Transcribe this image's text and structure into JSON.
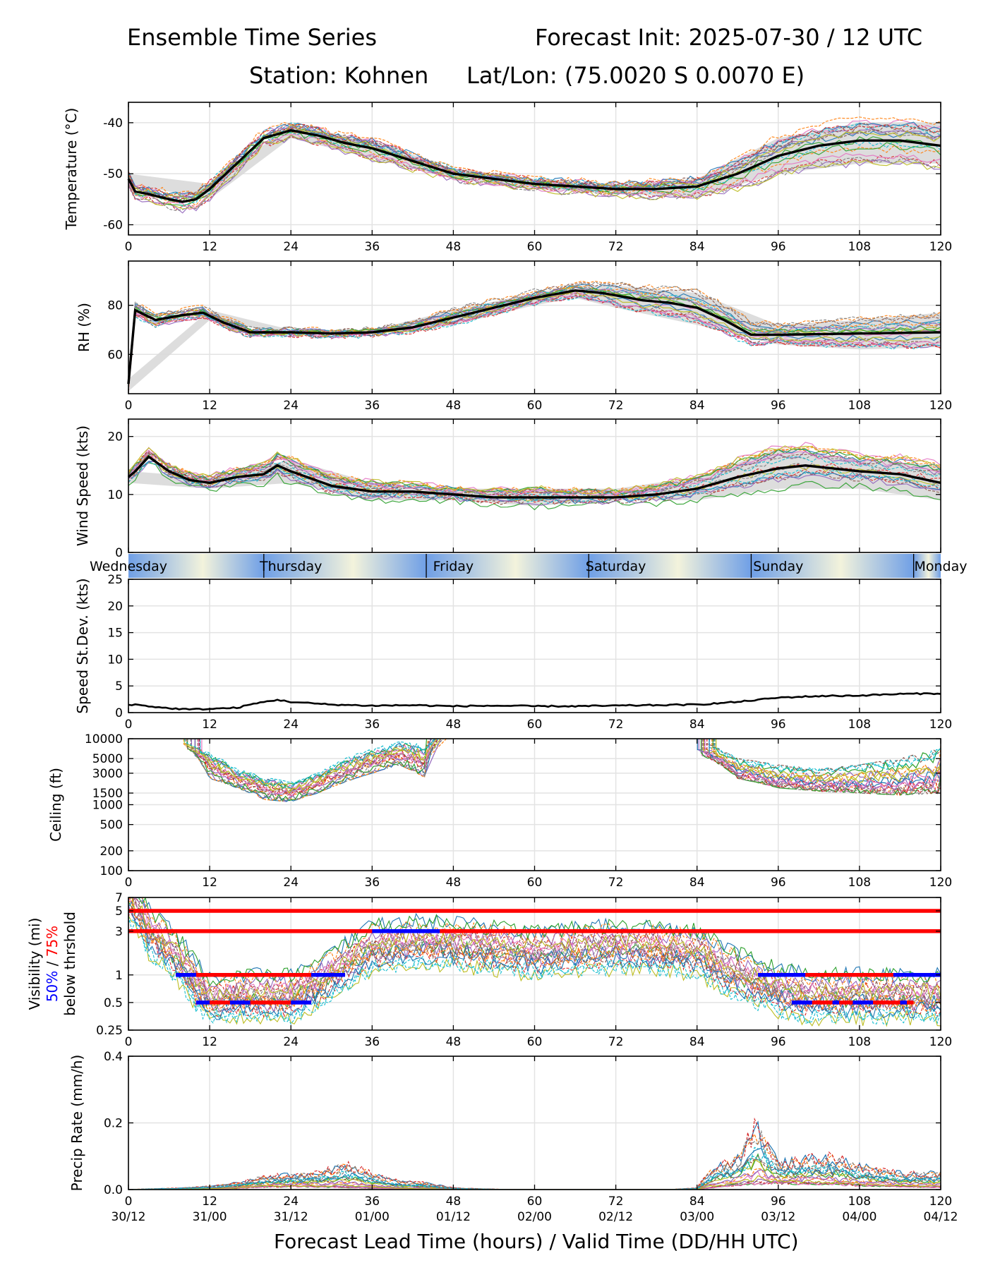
{
  "header": {
    "title_left": "Ensemble Time Series",
    "title_right": "Forecast Init: 2025-07-30 / 12 UTC",
    "station": "Station: Kohnen",
    "latlon": "Lat/Lon: (75.0020 S 0.0070 E)"
  },
  "footer": {
    "xlabel": "Forecast Lead Time (hours) / Valid Time (DD/HH UTC)"
  },
  "colors": {
    "mean": "#000000",
    "spread": "#d9d9d9",
    "threshold_75": "#ff0000",
    "threshold_50": "#0000ff",
    "day_band_light": "#f3f3dc",
    "day_band_dark": "#6f9fe6"
  },
  "lead_hours": [
    "0",
    "12",
    "24",
    "36",
    "48",
    "60",
    "72",
    "84",
    "96",
    "108",
    "120"
  ],
  "valid_times": [
    "30/12",
    "31/00",
    "31/12",
    "01/00",
    "01/12",
    "02/00",
    "02/12",
    "03/00",
    "03/12",
    "04/00",
    "04/12"
  ],
  "days": [
    "Wednesday",
    "Thursday",
    "Friday",
    "Saturday",
    "Sunday",
    "Monday"
  ],
  "visibility_legend": {
    "line1": "Visibility (mi)",
    "p50": "50%",
    "slash": " / ",
    "p75": "75%",
    "line3": "below thrshold"
  },
  "chart_data": [
    {
      "type": "line",
      "panel": "temperature",
      "ylabel": "Temperature (°C)",
      "ylim": [
        -62,
        -36
      ],
      "yticks": [
        -60,
        -50,
        -40
      ],
      "xlim": [
        0,
        120
      ],
      "grid": true,
      "series": [
        {
          "name": "",
          "role": "ensemble-mean",
          "x": [
            0,
            1,
            3,
            6,
            8,
            10,
            12,
            16,
            20,
            24,
            28,
            32,
            36,
            42,
            48,
            54,
            60,
            66,
            72,
            78,
            84,
            90,
            96,
            102,
            108,
            114,
            120
          ],
          "values": [
            -51,
            -53.5,
            -54,
            -55,
            -55.5,
            -55,
            -53,
            -48,
            -43,
            -41.5,
            -42.5,
            -44,
            -45,
            -47.5,
            -50,
            -51,
            -52,
            -52.5,
            -53,
            -53,
            -52.5,
            -50,
            -46.5,
            -44.5,
            -43.5,
            -43.5,
            -44.5
          ]
        },
        {
          "name": "",
          "role": "spread-upper",
          "x": [
            0,
            12,
            24,
            36,
            48,
            60,
            72,
            84,
            96,
            108,
            120
          ],
          "values": [
            -50,
            -52,
            -40.5,
            -43.5,
            -49,
            -51,
            -52,
            -51,
            -43,
            -40,
            -40
          ]
        },
        {
          "name": "",
          "role": "spread-lower",
          "x": [
            0,
            12,
            24,
            36,
            48,
            60,
            72,
            84,
            96,
            108,
            120
          ],
          "values": [
            -52,
            -55,
            -43,
            -47,
            -51,
            -53,
            -54,
            -54.5,
            -50,
            -48,
            -48
          ]
        }
      ]
    },
    {
      "type": "line",
      "panel": "rh",
      "ylabel": "RH (%)",
      "ylim": [
        44,
        98
      ],
      "yticks": [
        60,
        80
      ],
      "xlim": [
        0,
        120
      ],
      "grid": true,
      "series": [
        {
          "name": "",
          "role": "ensemble-mean",
          "x": [
            0,
            0.5,
            1,
            4,
            8,
            11,
            14,
            18,
            24,
            30,
            36,
            42,
            48,
            54,
            60,
            66,
            70,
            76,
            80,
            84,
            88,
            92,
            96,
            108,
            120
          ],
          "values": [
            48,
            75,
            78,
            74,
            76,
            77,
            73,
            69,
            69,
            68.5,
            69,
            71,
            75,
            79,
            83,
            86,
            85,
            82,
            81,
            79,
            74,
            68,
            68,
            68.5,
            69
          ]
        },
        {
          "name": "",
          "role": "spread-upper",
          "x": [
            0,
            12,
            24,
            36,
            48,
            60,
            66,
            72,
            84,
            96,
            108,
            120
          ],
          "values": [
            50,
            78,
            70,
            70,
            78,
            85,
            88,
            88,
            85,
            72,
            74,
            77
          ]
        },
        {
          "name": "",
          "role": "spread-lower",
          "x": [
            0,
            12,
            24,
            36,
            48,
            60,
            66,
            72,
            84,
            96,
            108,
            120
          ],
          "values": [
            45,
            74,
            68,
            68,
            72,
            80,
            83,
            79,
            72,
            64,
            62,
            63
          ]
        }
      ]
    },
    {
      "type": "line",
      "panel": "wind",
      "ylabel": "Wind Speed (kts)",
      "ylim": [
        0,
        23
      ],
      "yticks": [
        0,
        10,
        20
      ],
      "xlim": [
        0,
        120
      ],
      "grid": true,
      "series": [
        {
          "name": "",
          "role": "ensemble-mean",
          "x": [
            0,
            1,
            3,
            6,
            9,
            12,
            16,
            20,
            22,
            24,
            30,
            36,
            42,
            48,
            54,
            60,
            66,
            72,
            78,
            84,
            90,
            96,
            100,
            108,
            114,
            120
          ],
          "values": [
            13,
            14,
            16.5,
            14,
            12.5,
            12,
            13,
            13.5,
            15,
            14,
            11.5,
            10.5,
            10.5,
            10,
            9.5,
            9.5,
            9.5,
            9.5,
            10,
            11,
            13,
            14.5,
            15,
            14,
            13.5,
            12
          ]
        },
        {
          "name": "",
          "role": "spread-upper",
          "x": [
            0,
            12,
            24,
            36,
            48,
            60,
            72,
            84,
            96,
            108,
            120
          ],
          "values": [
            14,
            13,
            16,
            12,
            11,
            11,
            11,
            13,
            18,
            16,
            15
          ]
        },
        {
          "name": "",
          "role": "spread-lower",
          "x": [
            0,
            12,
            24,
            36,
            48,
            60,
            72,
            84,
            96,
            108,
            120
          ],
          "values": [
            12,
            11,
            12,
            9,
            9,
            8,
            9,
            9,
            11,
            11,
            9
          ]
        }
      ]
    },
    {
      "type": "line",
      "panel": "speed-stdev",
      "ylabel": "Speed St.Dev. (kts)",
      "ylim": [
        0,
        25
      ],
      "yticks": [
        0,
        5,
        10,
        15,
        20,
        25
      ],
      "xlim": [
        0,
        120
      ],
      "grid": true,
      "series": [
        {
          "name": "",
          "role": "ensemble-mean",
          "x": [
            0,
            1,
            3,
            6,
            9,
            12,
            16,
            18,
            20,
            22,
            24,
            30,
            36,
            42,
            48,
            54,
            60,
            66,
            72,
            78,
            84,
            90,
            96,
            102,
            108,
            114,
            120
          ],
          "values": [
            1.5,
            1.5,
            1.2,
            0.8,
            0.6,
            0.7,
            0.9,
            1.5,
            2.0,
            2.4,
            2.0,
            1.5,
            1.3,
            1.4,
            1.2,
            1.3,
            1.2,
            1.2,
            1.3,
            1.4,
            1.5,
            2.0,
            2.8,
            3.1,
            3.2,
            3.5,
            3.6
          ]
        }
      ]
    },
    {
      "type": "line",
      "panel": "ceiling",
      "ylabel": "Ceiling (ft)",
      "yscale": "log",
      "ylim": [
        100,
        10000
      ],
      "yticks": [
        100,
        200,
        500,
        1000,
        1500,
        3000,
        5000,
        10000
      ],
      "xlim": [
        0,
        120
      ],
      "grid": true,
      "series": [
        {
          "name": "",
          "role": "ensemble-envelope-low",
          "x": [
            8,
            12,
            16,
            20,
            24,
            28,
            32,
            36,
            40,
            44
          ],
          "values": [
            8000,
            2500,
            1800,
            1200,
            1100,
            1500,
            2200,
            3000,
            4000,
            2500
          ]
        },
        {
          "name": "",
          "role": "ensemble-envelope-high",
          "x": [
            8,
            12,
            16,
            20,
            24,
            28,
            32,
            36,
            40,
            44
          ],
          "values": [
            9500,
            6000,
            3500,
            2600,
            2200,
            3000,
            5000,
            7000,
            9000,
            8000
          ]
        },
        {
          "name": "",
          "role": "ensemble-envelope-low",
          "x": [
            84,
            90,
            96,
            102,
            108,
            114,
            120
          ],
          "values": [
            6000,
            2500,
            1800,
            1600,
            1500,
            1400,
            1500
          ]
        },
        {
          "name": "",
          "role": "ensemble-envelope-high",
          "x": [
            84,
            90,
            96,
            102,
            108,
            114,
            120
          ],
          "values": [
            9500,
            5000,
            4000,
            3500,
            4000,
            5000,
            7000
          ]
        }
      ]
    },
    {
      "type": "line",
      "panel": "visibility",
      "ylabel": "Visibility (mi)",
      "yscale": "log",
      "ylim": [
        0.25,
        7
      ],
      "yticks": [
        0.25,
        0.5,
        1,
        3,
        5,
        7
      ],
      "xlim": [
        0,
        120
      ],
      "grid": true,
      "thresholds": [
        {
          "level": 5,
          "p75_from": 0,
          "p75_to": 120
        },
        {
          "level": 3,
          "p75_from": 0,
          "p75_to": 120,
          "p50_segments": [
            [
              36,
              46
            ]
          ]
        },
        {
          "level": 1,
          "p75_from": 7,
          "p75_to": 32,
          "p50_segments": [
            [
              7,
              10
            ],
            [
              27,
              32
            ]
          ]
        },
        {
          "level": 1,
          "p75_from": 93,
          "p75_to": 120,
          "p50_segments": [
            [
              93,
              100
            ],
            [
              113,
              120
            ]
          ]
        },
        {
          "level": 0.5,
          "p75_from": 10,
          "p75_to": 27,
          "p50_segments": [
            [
              10,
              12
            ],
            [
              15,
              18
            ],
            [
              24,
              27
            ]
          ]
        },
        {
          "level": 0.5,
          "p75_from": 98,
          "p75_to": 116,
          "p50_segments": [
            [
              98,
              101
            ],
            [
              104,
              105
            ],
            [
              107,
              110
            ],
            [
              114,
              115
            ]
          ]
        }
      ],
      "series": [
        {
          "name": "",
          "role": "ensemble-median",
          "x": [
            0,
            3,
            6,
            8,
            10,
            12,
            16,
            20,
            24,
            28,
            32,
            36,
            42,
            48,
            54,
            60,
            66,
            72,
            78,
            84,
            88,
            92,
            96,
            100,
            104,
            108,
            114,
            120
          ],
          "values": [
            7,
            3,
            2,
            1.3,
            0.8,
            0.55,
            0.6,
            0.6,
            0.6,
            0.8,
            1.3,
            2,
            2.3,
            2.2,
            2,
            1.8,
            1.9,
            2.1,
            2,
            1.8,
            1.2,
            0.9,
            0.7,
            0.6,
            0.6,
            0.6,
            0.6,
            0.6
          ]
        }
      ]
    },
    {
      "type": "line",
      "panel": "precip",
      "ylabel": "Precip Rate (mm/h)",
      "ylim": [
        0,
        0.4
      ],
      "yticks": [
        0.0,
        0.2,
        0.4
      ],
      "xlim": [
        0,
        120
      ],
      "grid": true,
      "series": [
        {
          "name": "",
          "role": "ensemble-max",
          "x": [
            0,
            8,
            12,
            16,
            20,
            24,
            28,
            32,
            36,
            40,
            44,
            48,
            56,
            64,
            72,
            80,
            84,
            86,
            90,
            93,
            96,
            100,
            104,
            108,
            114,
            120
          ],
          "values": [
            0,
            0.005,
            0.01,
            0.02,
            0.04,
            0.045,
            0.05,
            0.08,
            0.05,
            0.025,
            0.02,
            0.005,
            0,
            0,
            0,
            0,
            0.005,
            0.06,
            0.1,
            0.2,
            0.08,
            0.09,
            0.1,
            0.07,
            0.05,
            0.05
          ]
        },
        {
          "name": "",
          "role": "ensemble-typical",
          "x": [
            0,
            8,
            12,
            16,
            20,
            24,
            28,
            32,
            36,
            40,
            44,
            48,
            56,
            64,
            72,
            80,
            84,
            88,
            92,
            96,
            100,
            104,
            108,
            114,
            120
          ],
          "values": [
            0,
            0.003,
            0.006,
            0.012,
            0.025,
            0.03,
            0.025,
            0.02,
            0.01,
            0.005,
            0.002,
            0,
            0,
            0,
            0,
            0,
            0.002,
            0.03,
            0.05,
            0.06,
            0.06,
            0.05,
            0.04,
            0.03,
            0.02
          ]
        }
      ]
    }
  ]
}
